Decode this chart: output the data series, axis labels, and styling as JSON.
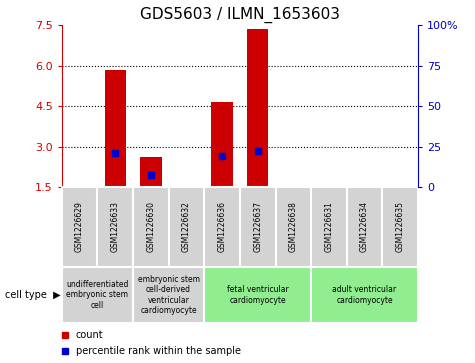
{
  "title": "GDS5603 / ILMN_1653603",
  "samples": [
    "GSM1226629",
    "GSM1226633",
    "GSM1226630",
    "GSM1226632",
    "GSM1226636",
    "GSM1226637",
    "GSM1226638",
    "GSM1226631",
    "GSM1226634",
    "GSM1226635"
  ],
  "count_values": [
    1.5,
    5.85,
    2.6,
    1.5,
    4.65,
    7.35,
    1.5,
    1.5,
    1.5,
    1.5
  ],
  "percentile_values": [
    1.5,
    2.75,
    1.95,
    1.5,
    2.65,
    2.85,
    1.5,
    1.5,
    1.5,
    1.5
  ],
  "ylim_left": [
    1.5,
    7.5
  ],
  "yticks_left": [
    1.5,
    3.0,
    4.5,
    6.0,
    7.5
  ],
  "yticks_right": [
    0,
    25,
    50,
    75,
    100
  ],
  "bar_color": "#cc0000",
  "percentile_color": "#0000cc",
  "grid_color": "#000000",
  "cell_types": [
    {
      "label": "undifferentiated\nembryonic stem\ncell",
      "span": [
        0,
        2
      ],
      "color": "#d3d3d3"
    },
    {
      "label": "embryonic stem\ncell-derived\nventricular\ncardiomyocyte",
      "span": [
        2,
        4
      ],
      "color": "#d3d3d3"
    },
    {
      "label": "fetal ventricular\ncardiomyocyte",
      "span": [
        4,
        7
      ],
      "color": "#90ee90"
    },
    {
      "label": "adult ventricular\ncardiomyocyte",
      "span": [
        7,
        10
      ],
      "color": "#90ee90"
    }
  ],
  "legend_count_label": "count",
  "legend_percentile_label": "percentile rank within the sample",
  "cell_type_label": "cell type",
  "background_color": "#ffffff",
  "dotted_yticks": [
    3.0,
    4.5,
    6.0
  ]
}
